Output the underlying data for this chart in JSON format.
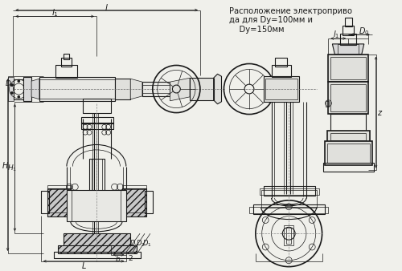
{
  "bg_color": "#f0f0eb",
  "line_color": "#1a1a1a",
  "title_text": "Расположение электроприво\nда для Dy=100мм и\n    Dy=150мм",
  "title_fontsize": 7.2,
  "figsize": [
    5.0,
    3.38
  ],
  "dpi": 100
}
